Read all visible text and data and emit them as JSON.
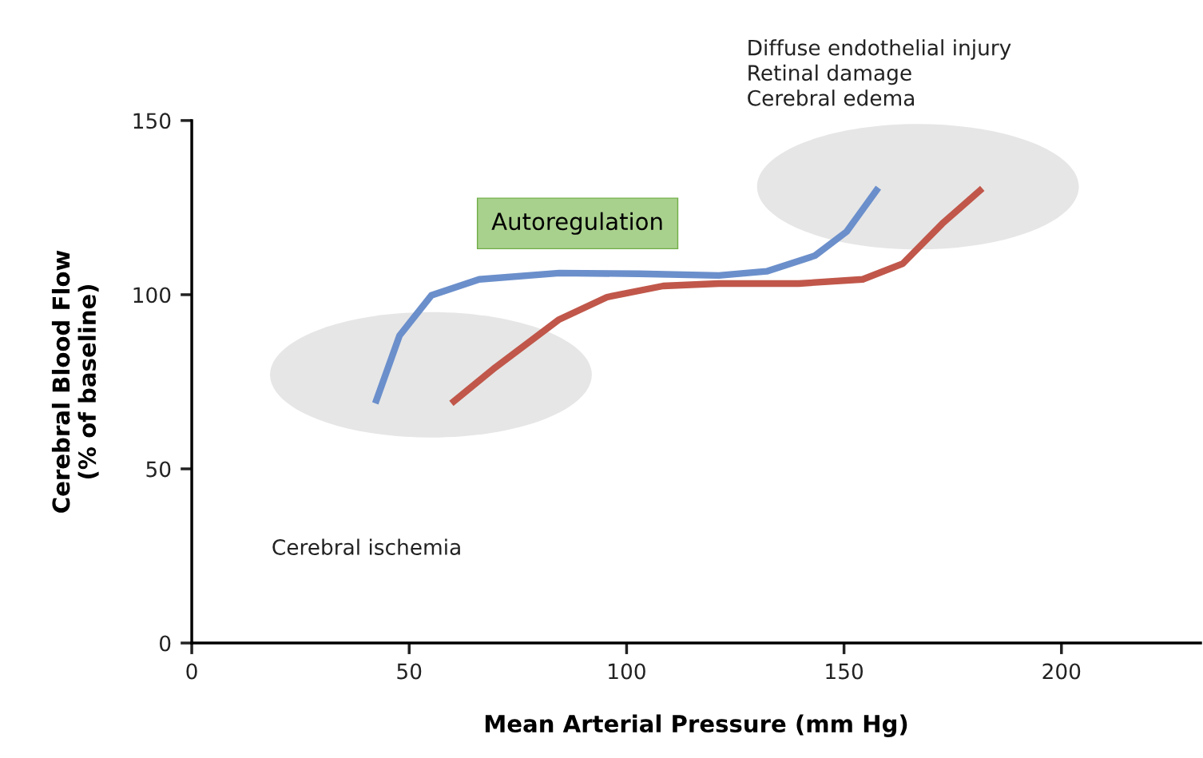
{
  "chart_data": {
    "type": "line",
    "xlabel": "Mean Arterial Pressure (mm Hg)",
    "ylabel": "Cerebral Blood Flow\n(% of baseline)",
    "xlim": [
      0,
      232
    ],
    "xticks": [
      0,
      50,
      100,
      150,
      200
    ],
    "ylim": [
      0,
      150
    ],
    "yticks": [
      0,
      50,
      100,
      150
    ],
    "grid": false,
    "legend": false,
    "marker": "none",
    "line_style": "solid",
    "series": [
      {
        "color": "#6b8fcb",
        "x": [
          42.2,
          47.8,
          55.1,
          66.1,
          84.5,
          102.8,
          121.2,
          132.2,
          143.3,
          150.6,
          157.9
        ],
        "values": [
          68.8,
          88.3,
          99.8,
          104.4,
          106.2,
          106,
          105.5,
          106.7,
          111.2,
          118.1,
          130.7
        ]
      },
      {
        "color": "#c0574a",
        "x": [
          59.7,
          69.8,
          84.5,
          95.5,
          108.4,
          121.2,
          139.6,
          154.3,
          163.5,
          172.6,
          181.8
        ],
        "values": [
          68.8,
          79.1,
          92.9,
          99.3,
          102.5,
          103.2,
          103.2,
          104.4,
          108.9,
          120.4,
          130.5
        ]
      }
    ],
    "annotations": [
      "Diffuse endothelial injury\nRetinal damage\nCerebral edema",
      "Autoregulation",
      "Cerebral ischemia"
    ]
  }
}
